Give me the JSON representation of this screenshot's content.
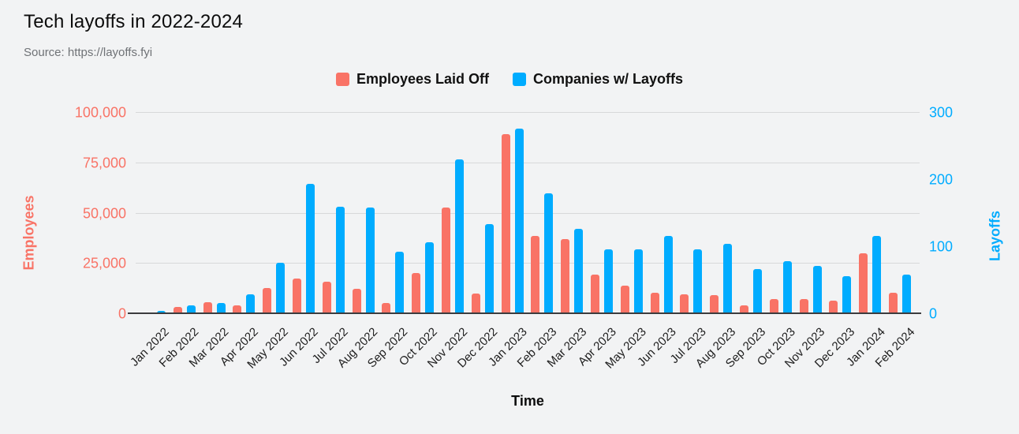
{
  "title": "Tech layoffs in 2022-2024",
  "source": "Source: https://layoffs.fyi",
  "colors": {
    "background": "#f2f3f4",
    "employees": "#f97366",
    "companies": "#00acff",
    "gridline": "#d7d8da",
    "axis_line": "#3c3c3e",
    "text": "#0c0c0c",
    "source_text": "#6f7276"
  },
  "legend": [
    {
      "label": "Employees Laid Off",
      "color": "#f97366"
    },
    {
      "label": "Companies w/ Layoffs",
      "color": "#00acff"
    }
  ],
  "chart_data": {
    "type": "bar",
    "title": "Tech layoffs in 2022-2024",
    "subtitle": "Source: https://layoffs.fyi",
    "xlabel": "Time",
    "grid": true,
    "legend_position": "top",
    "categories": [
      "Jan 2022",
      "Feb 2022",
      "Mar 2022",
      "Apr 2022",
      "May 2022",
      "Jun 2022",
      "Jul 2022",
      "Aug 2022",
      "Sep 2022",
      "Oct 2022",
      "Nov 2022",
      "Dec 2022",
      "Jan 2023",
      "Feb 2023",
      "Mar 2023",
      "Apr 2023",
      "May 2023",
      "Jun 2023",
      "Jul 2023",
      "Aug 2023",
      "Sep 2023",
      "Oct 2023",
      "Nov 2023",
      "Dec 2023",
      "Jan 2024",
      "Feb 2024"
    ],
    "series": [
      {
        "name": "Employees Laid Off",
        "axis": "left",
        "color": "#f97366",
        "values": [
          500,
          3600,
          6000,
          4400,
          12900,
          17500,
          16000,
          12400,
          5500,
          20400,
          53000,
          10200,
          89400,
          38800,
          37300,
          19600,
          14100,
          10600,
          10000,
          9500,
          4300,
          7500,
          7500,
          6700,
          30100,
          10600
        ]
      },
      {
        "name": "Companies w/ Layoffs",
        "axis": "right",
        "color": "#00acff",
        "values": [
          5,
          13,
          17,
          30,
          77,
          194,
          160,
          159,
          93,
          107,
          231,
          134,
          277,
          180,
          127,
          96,
          96,
          117,
          96,
          105,
          67,
          79,
          72,
          56,
          117,
          59
        ]
      }
    ],
    "left_axis": {
      "label": "Employees",
      "color": "#f97366",
      "min": 0,
      "max": 100000,
      "ticks": [
        0,
        25000,
        50000,
        75000,
        100000
      ],
      "tick_labels": [
        "0",
        "25,000",
        "50,000",
        "75,000",
        "100,000"
      ]
    },
    "right_axis": {
      "label": "Layoffs",
      "color": "#00acff",
      "min": 0,
      "max": 300,
      "ticks": [
        0,
        100,
        200,
        300
      ],
      "tick_labels": [
        "0",
        "100",
        "200",
        "300"
      ]
    }
  }
}
